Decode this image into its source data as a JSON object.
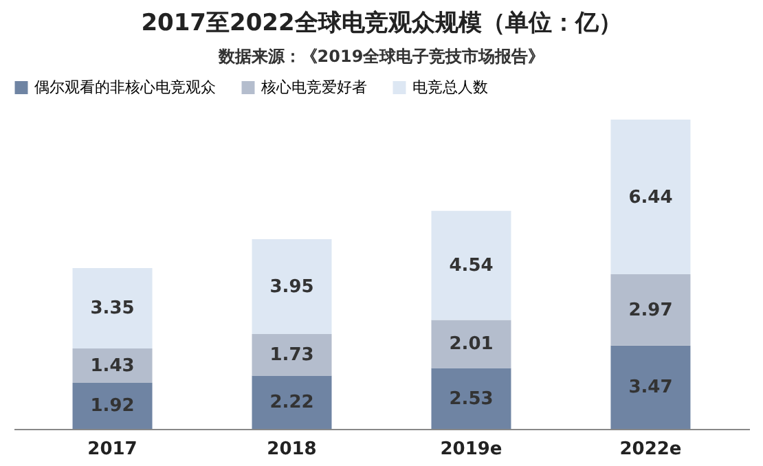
{
  "chart_data": {
    "type": "bar",
    "title": "2017至2022全球电竞观众规模（单位：亿）",
    "subtitle": "数据来源：《2019全球电子竞技市场报告》",
    "categories": [
      "2017",
      "2018",
      "2019e",
      "2022e"
    ],
    "stacked": true,
    "data_labels": true,
    "legend": "top left",
    "grid": false,
    "series": [
      {
        "name": "偶尔观看的非核心电竞观众",
        "color": "#6f84a3",
        "values": [
          1.92,
          2.22,
          2.53,
          3.47
        ]
      },
      {
        "name": "核心电竞爱好者",
        "color": "#b4bdcd",
        "values": [
          1.43,
          1.73,
          2.01,
          2.97
        ]
      },
      {
        "name": "电竞总人数",
        "color": "#dde7f3",
        "values": [
          3.35,
          3.95,
          4.54,
          6.44
        ]
      }
    ]
  }
}
